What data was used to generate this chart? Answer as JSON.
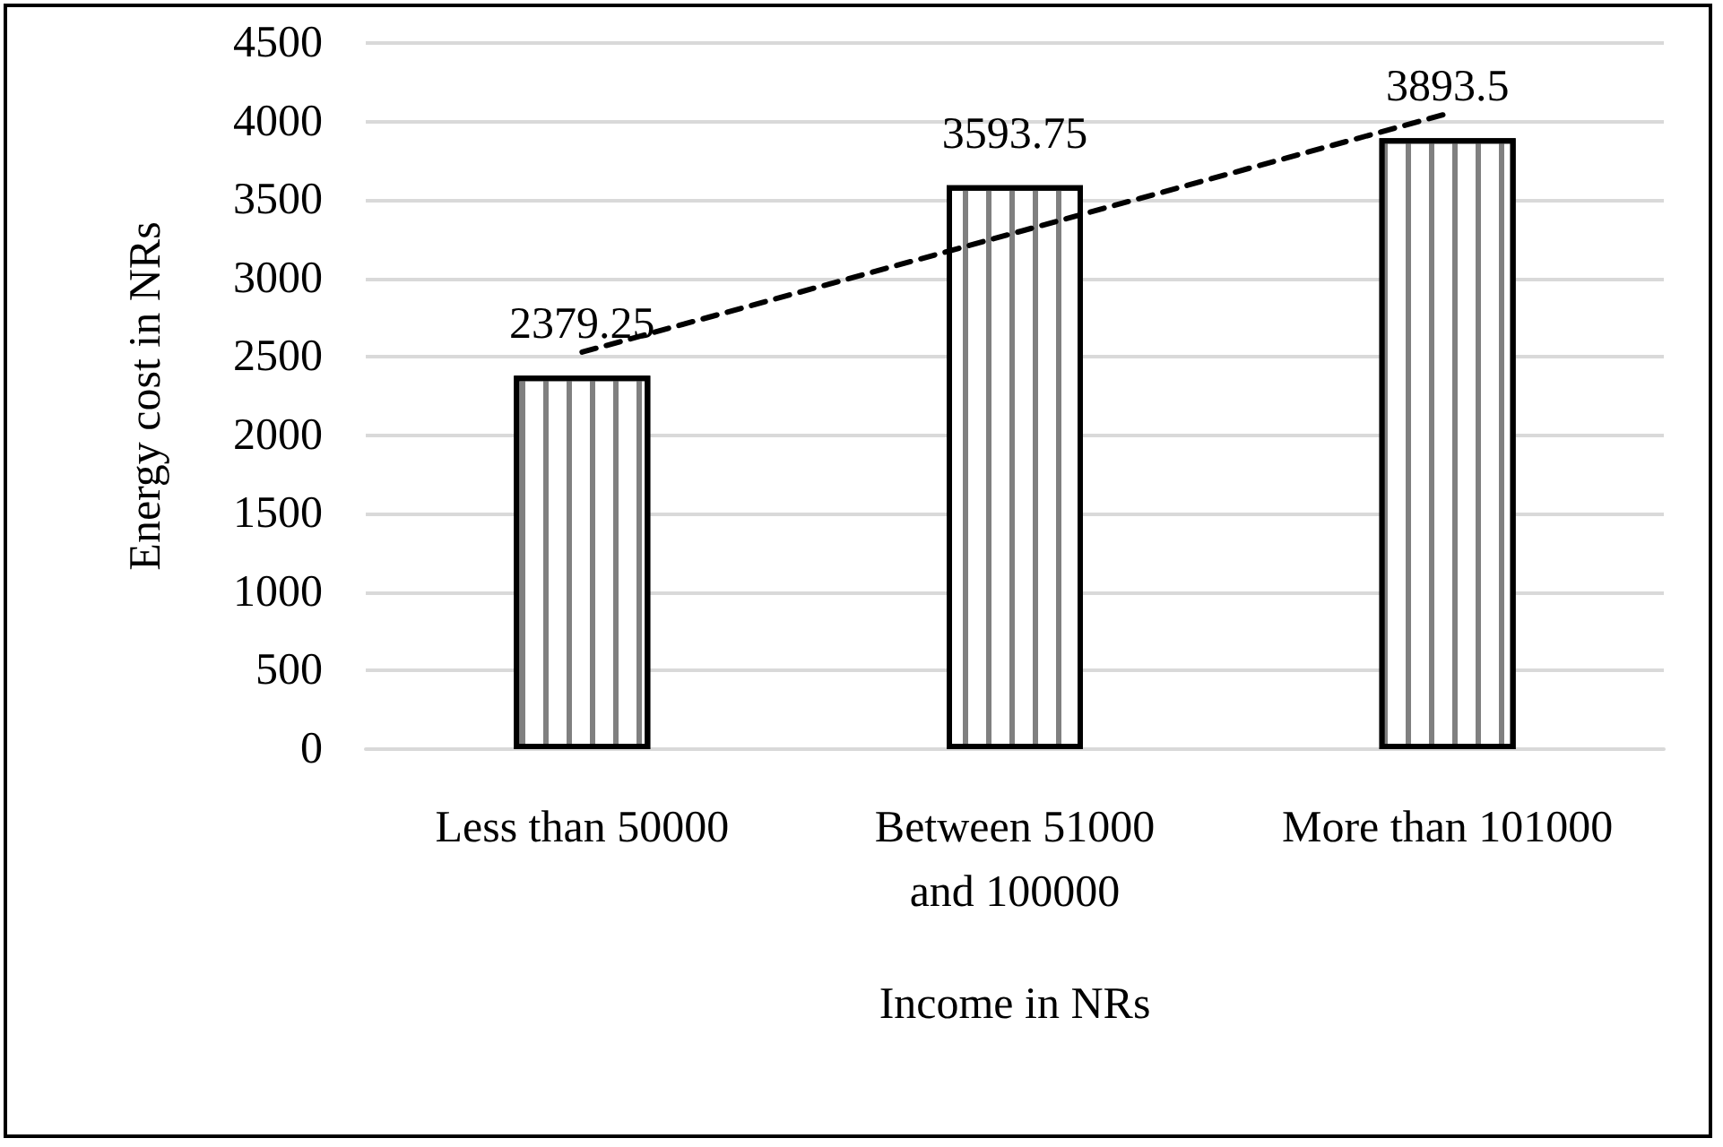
{
  "chart_data": {
    "type": "bar",
    "xlabel": "Income in NRs",
    "ylabel": "Energy cost in NRs",
    "categories": [
      "Less than 50000",
      "Between 51000\nand 100000",
      "More than 101000"
    ],
    "series": [
      {
        "color": "#ffffff",
        "values": [
          2379.25,
          3593.75,
          3893.5
        ],
        "value_labels": [
          "2379.25",
          "3593.75",
          "3893.5"
        ]
      },
      {
        "type": "line",
        "color": "#000000",
        "x": [
          "Less than 50000",
          "Between 51000\nand 100000",
          "More than 101000"
        ],
        "values": [
          2530,
          3290,
          4050
        ],
        "line_style": "dashed",
        "marker": "none"
      }
    ],
    "ylim": [
      0,
      4500
    ],
    "yticks": [
      0,
      500,
      1000,
      1500,
      2000,
      2500,
      3000,
      3500,
      4000,
      4500
    ],
    "grid": "y"
  }
}
